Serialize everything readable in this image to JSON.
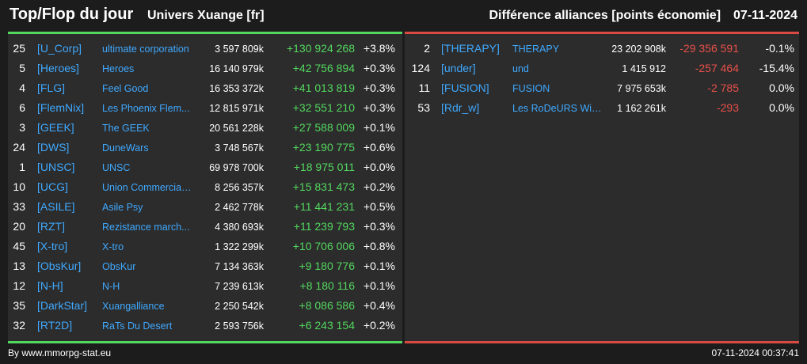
{
  "header": {
    "title": "Top/Flop du jour",
    "subtitle": "Univers Xuange [fr]",
    "ranking_label": "Différence alliances [points économie]",
    "date": "07-11-2024"
  },
  "colors": {
    "background": "#1c1c1c",
    "panel": "#2c2c2c",
    "gain": "#53d85f",
    "loss": "#e8504a",
    "link": "#3fa9ff"
  },
  "top": [
    {
      "rank": "25",
      "tag": "[U_Corp]",
      "name": "ultimate corporation",
      "points": "3 597 809k",
      "diff": "+130 924 268",
      "pct": "+3.8%"
    },
    {
      "rank": "5",
      "tag": "[Heroes]",
      "name": "Heroes",
      "points": "16 140 979k",
      "diff": "+42 756 894",
      "pct": "+0.3%"
    },
    {
      "rank": "4",
      "tag": "[FLG]",
      "name": "Feel Good",
      "points": "16 353 372k",
      "diff": "+41 013 819",
      "pct": "+0.3%"
    },
    {
      "rank": "6",
      "tag": "[FlemNix]",
      "name": "Les Phoenix Flem...",
      "points": "12 815 971k",
      "diff": "+32 551 210",
      "pct": "+0.3%"
    },
    {
      "rank": "3",
      "tag": "[GEEK]",
      "name": "The GEEK",
      "points": "20 561 228k",
      "diff": "+27 588 009",
      "pct": "+0.1%"
    },
    {
      "rank": "24",
      "tag": "[DWS]",
      "name": "DuneWars",
      "points": "3 748 567k",
      "diff": "+23 190 775",
      "pct": "+0.6%"
    },
    {
      "rank": "1",
      "tag": "[UNSC]",
      "name": "UNSC",
      "points": "69 978 700k",
      "diff": "+18 975 011",
      "pct": "+0.0%"
    },
    {
      "rank": "10",
      "tag": "[UCG]",
      "name": "Union Commerciale...",
      "points": "8 256 357k",
      "diff": "+15 831 473",
      "pct": "+0.2%"
    },
    {
      "rank": "33",
      "tag": "[ASILE]",
      "name": "Asile Psy",
      "points": "2 462 778k",
      "diff": "+11 441 231",
      "pct": "+0.5%"
    },
    {
      "rank": "20",
      "tag": "[RZT]",
      "name": "Rezistance march...",
      "points": "4 380 693k",
      "diff": "+11 239 793",
      "pct": "+0.3%"
    },
    {
      "rank": "45",
      "tag": "[X-tro]",
      "name": "X-tro",
      "points": "1 322 299k",
      "diff": "+10 706 006",
      "pct": "+0.8%"
    },
    {
      "rank": "13",
      "tag": "[ObsKur]",
      "name": "ObsKur",
      "points": "7 134 363k",
      "diff": "+9 180 776",
      "pct": "+0.1%"
    },
    {
      "rank": "12",
      "tag": "[N-H]",
      "name": "N-H",
      "points": "7 239 613k",
      "diff": "+8 180 116",
      "pct": "+0.1%"
    },
    {
      "rank": "35",
      "tag": "[DarkStar]",
      "name": "Xuangalliance",
      "points": "2 250 542k",
      "diff": "+8 086 586",
      "pct": "+0.4%"
    },
    {
      "rank": "32",
      "tag": "[RT2D]",
      "name": "RaTs Du Desert",
      "points": "2 593 756k",
      "diff": "+6 243 154",
      "pct": "+0.2%"
    }
  ],
  "flop": [
    {
      "rank": "2",
      "tag": "[THERAPY]",
      "name": "THERAPY",
      "points": "23 202 908k",
      "diff": "-29 356 591",
      "pct": "-0.1%"
    },
    {
      "rank": "124",
      "tag": "[under]",
      "name": "und",
      "points": "1 415 912",
      "diff": "-257 464",
      "pct": "-15.4%"
    },
    {
      "rank": "11",
      "tag": "[FUSION]",
      "name": "FUSION",
      "points": "7 975 653k",
      "diff": "-2 785",
      "pct": "0.0%"
    },
    {
      "rank": "53",
      "tag": "[Rdr_w]",
      "name": "Les RoDeURS Win...",
      "points": "1 162 261k",
      "diff": "-293",
      "pct": "0.0%"
    }
  ],
  "footer": {
    "credit": "By www.mmorpg-stat.eu",
    "timestamp": "07-11-2024 00:37:41"
  }
}
